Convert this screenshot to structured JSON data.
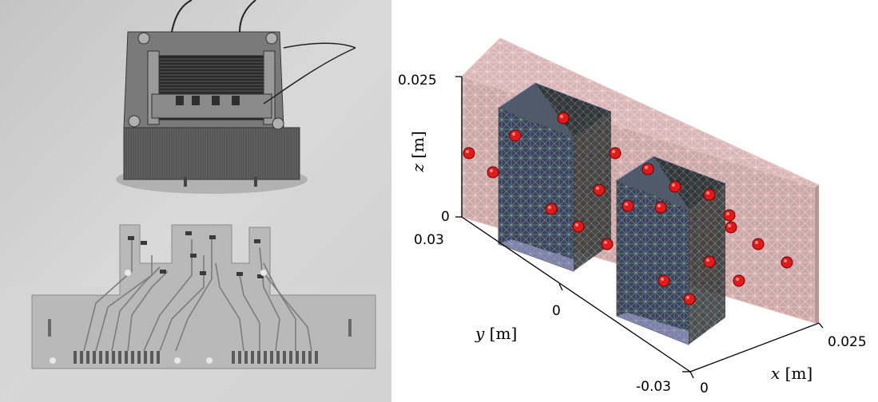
{
  "photo": {
    "subject": "transformer-and-sensor-pcb"
  },
  "plot": {
    "z_axis": {
      "label_var": "z",
      "label_unit": "[m]",
      "ticks": [
        "0.025",
        "0"
      ]
    },
    "y_axis": {
      "label_var": "y",
      "label_unit": "[m]",
      "ticks": [
        "0.03",
        "0",
        "-0.03"
      ]
    },
    "x_axis": {
      "label_var": "x",
      "label_unit": "[m]",
      "ticks": [
        "0",
        "0.025"
      ]
    },
    "colors": {
      "mesh_box_face": "#c8a2a2",
      "mesh_box_wire": "#f2c4c4",
      "core_face": "#3b4450",
      "core_wire_blue": "#8a95e0",
      "core_wire_green": "#7fbf7f",
      "sensor": "#e31a1a"
    },
    "sensor_count": 22
  }
}
